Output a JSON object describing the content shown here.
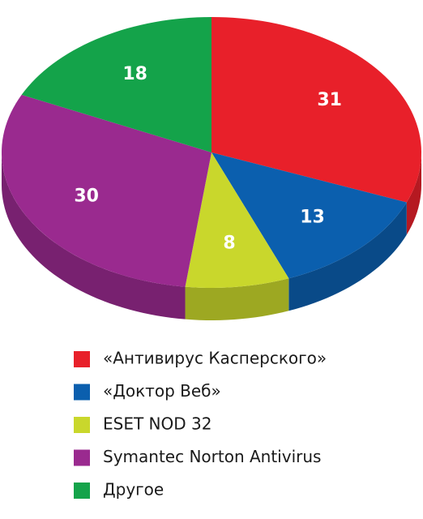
{
  "chart_data": {
    "type": "pie",
    "categories": [
      "«Антивирус Касперского»",
      "«Доктор Веб»",
      "ESET NOD 32",
      "Symantec Norton Antivirus",
      "Другое"
    ],
    "values": [
      31,
      13,
      8,
      30,
      18
    ],
    "colors": [
      "#e8202a",
      "#0b5fae",
      "#c9d72c",
      "#9a2a8f",
      "#14a34a"
    ],
    "legend": "bottom"
  }
}
